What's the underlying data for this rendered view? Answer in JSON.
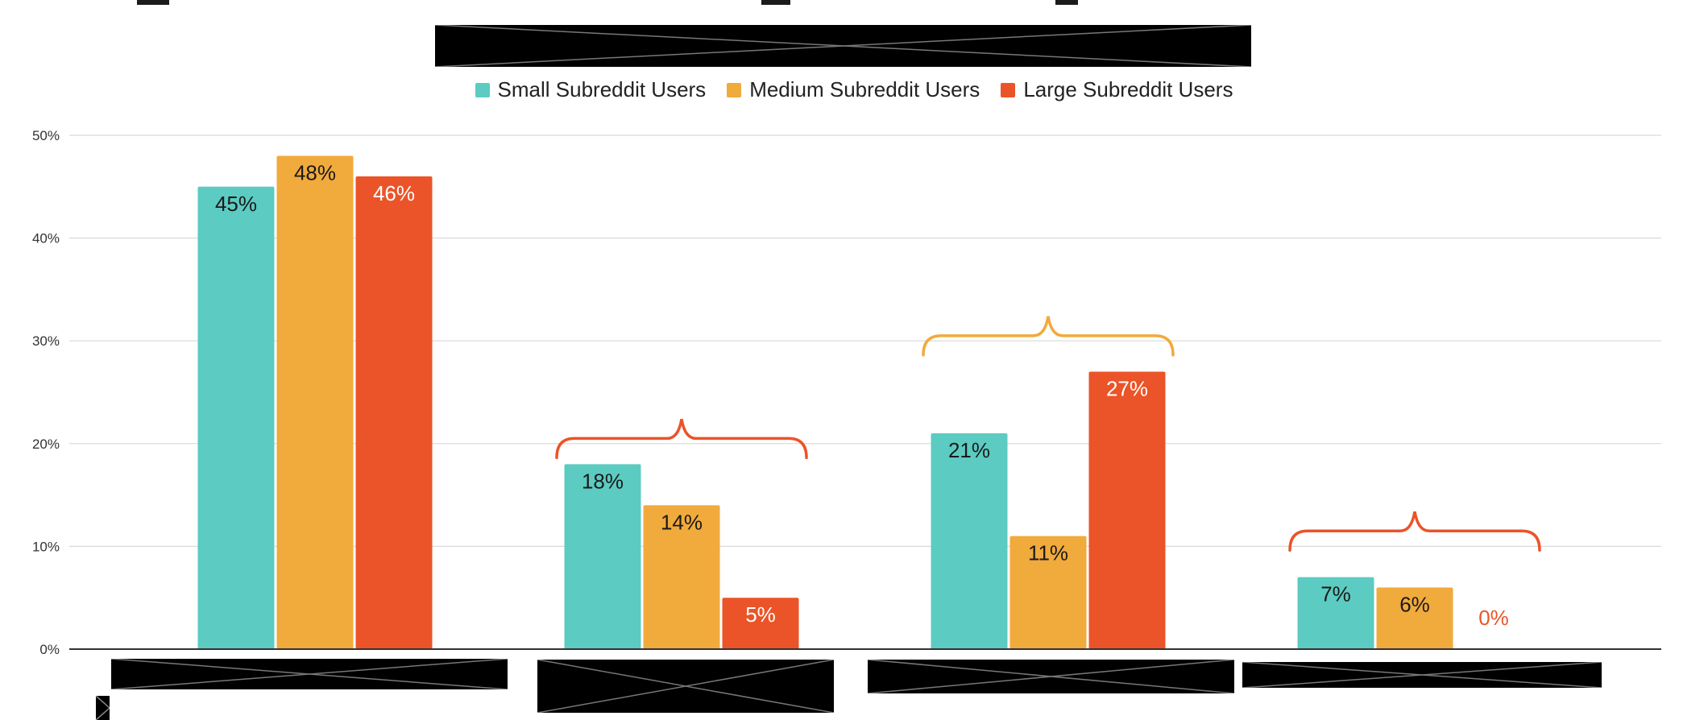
{
  "colors": {
    "small": "#5ccbc1",
    "medium": "#f1aa3c",
    "large": "#eb5428",
    "grid": "#d9d9d9",
    "axis": "#333333",
    "redaction": "#000000"
  },
  "chart_data": {
    "type": "bar",
    "title": "",
    "xlabel": "",
    "ylabel": "",
    "ylim": [
      0,
      50
    ],
    "y_ticks": [
      "0%",
      "10%",
      "20%",
      "30%",
      "40%",
      "50%"
    ],
    "grid": true,
    "legend_position": "top",
    "categories": [
      "",
      "",
      "",
      ""
    ],
    "series": [
      {
        "name": "Small Subreddit Users",
        "values": [
          45,
          18,
          21,
          7
        ],
        "labels": [
          "45%",
          "18%",
          "21%",
          "7%"
        ]
      },
      {
        "name": "Medium Subreddit Users",
        "values": [
          48,
          14,
          11,
          6
        ],
        "labels": [
          "48%",
          "14%",
          "11%",
          "6%"
        ]
      },
      {
        "name": "Large Subreddit Users",
        "values": [
          46,
          5,
          27,
          0
        ],
        "labels": [
          "46%",
          "5%",
          "27%",
          "0%"
        ]
      }
    ],
    "annotations": [
      {
        "type": "brace",
        "category_index": 1,
        "value": 20.5,
        "color": "large"
      },
      {
        "type": "brace",
        "category_index": 2,
        "value": 30.5,
        "color": "medium"
      },
      {
        "type": "brace",
        "category_index": 3,
        "value": 11.5,
        "color": "large"
      }
    ]
  }
}
